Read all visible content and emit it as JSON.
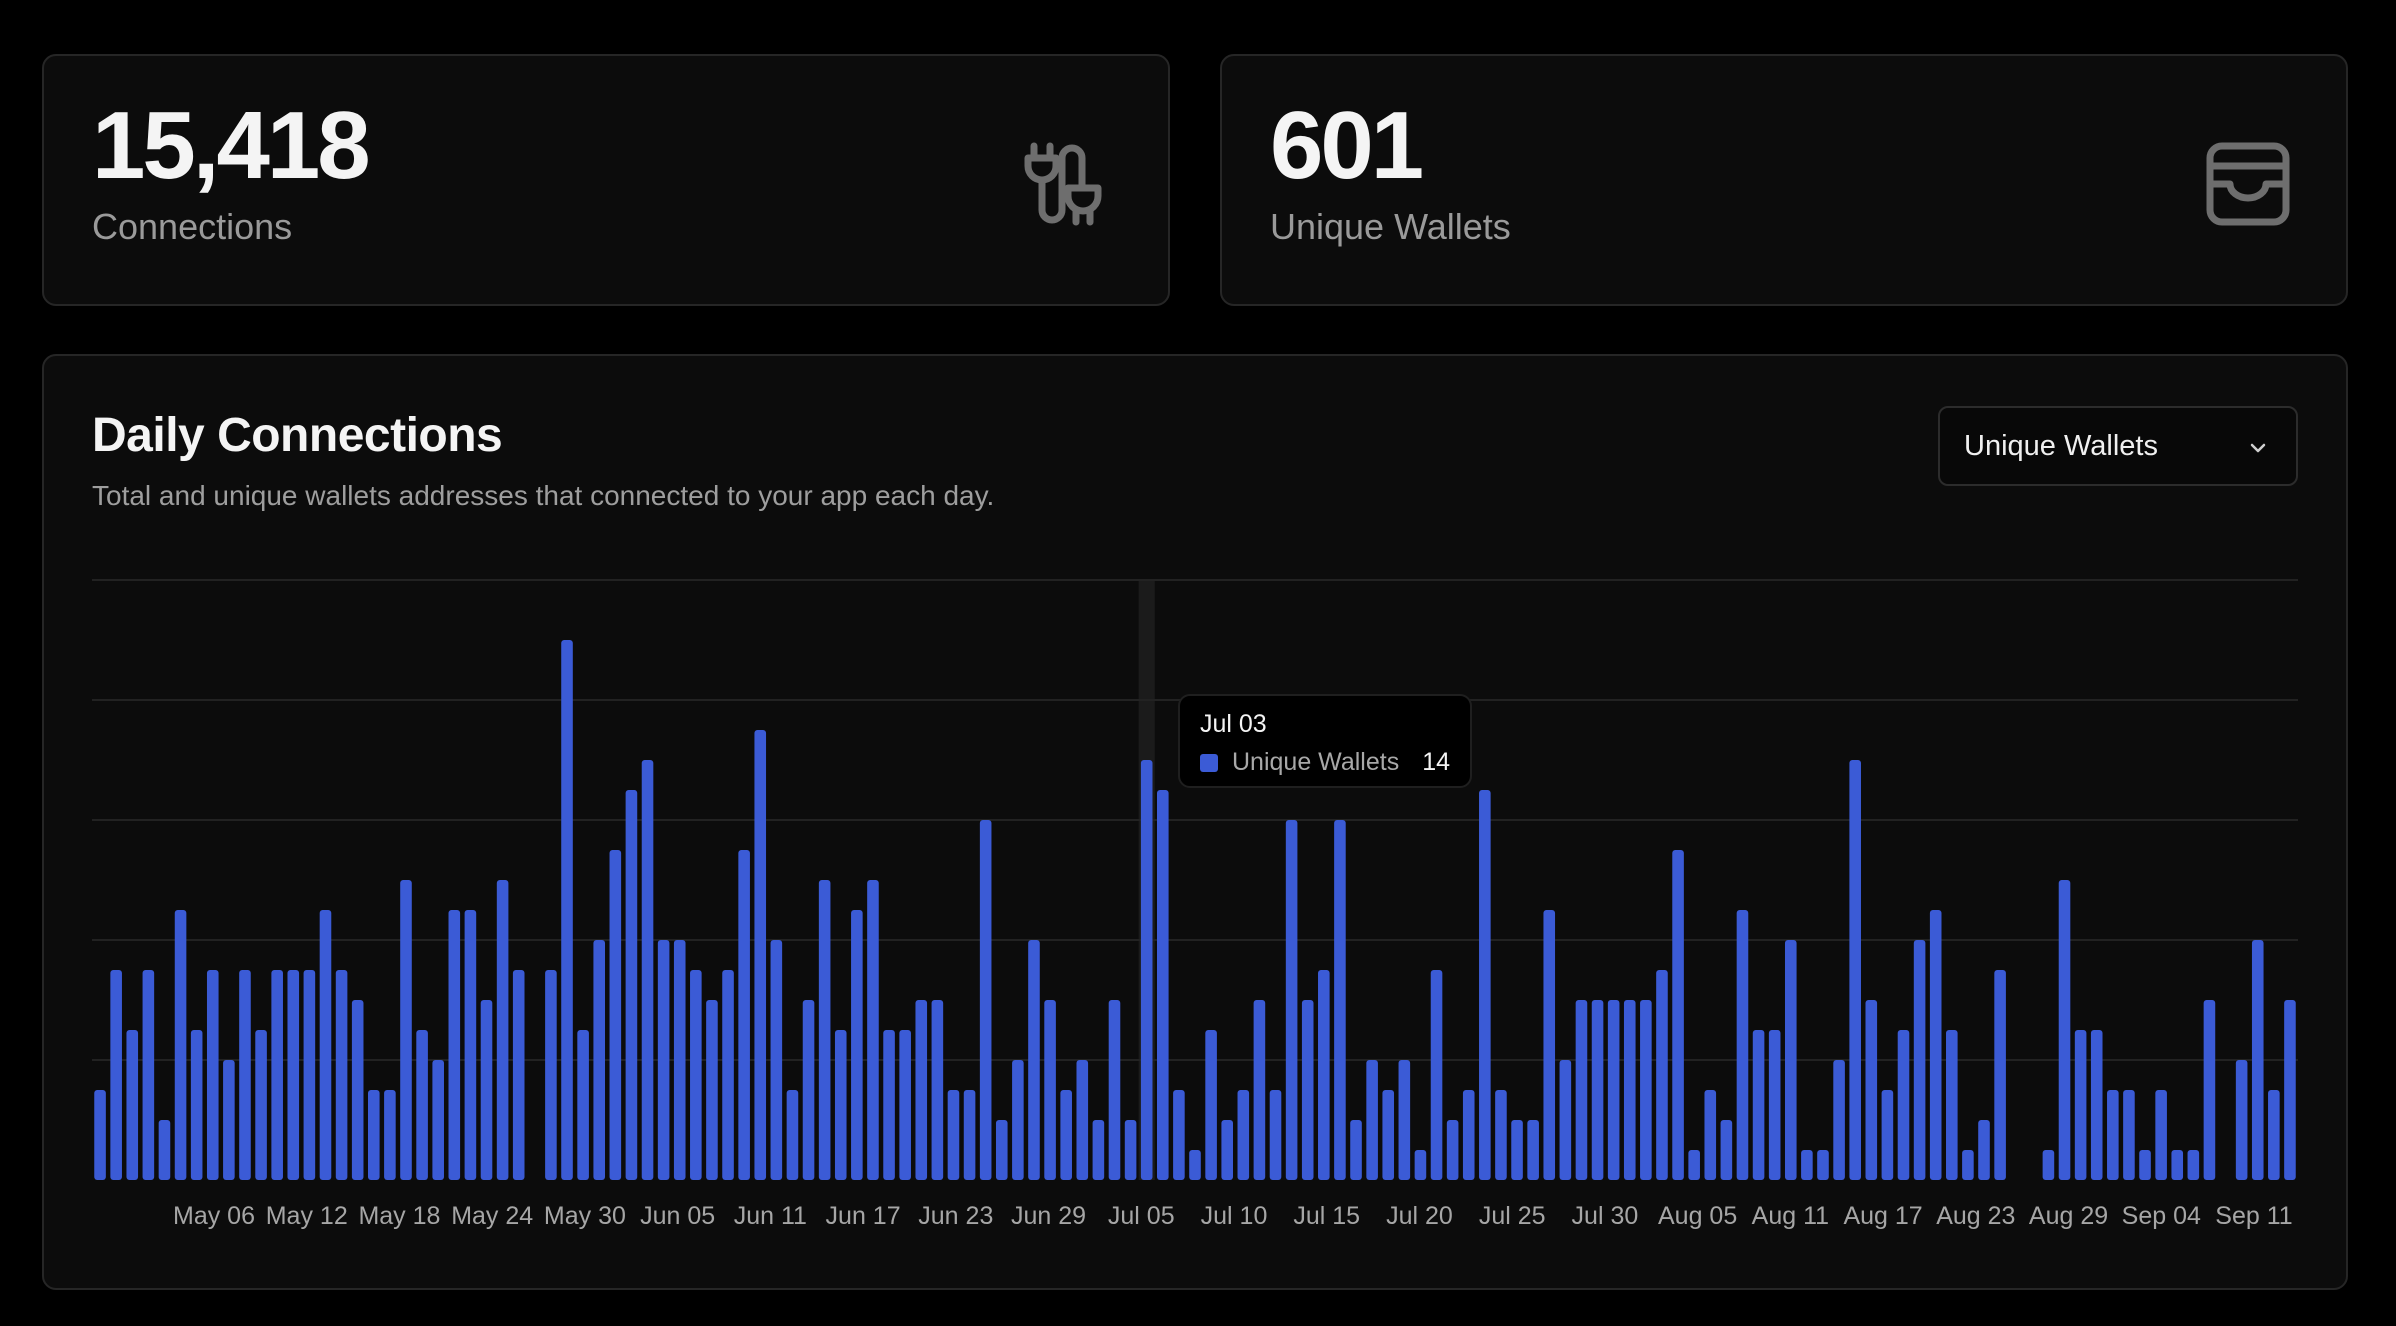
{
  "stats": {
    "connections": {
      "value": "15,418",
      "label": "Connections",
      "icon": "plug-cable-icon"
    },
    "wallets": {
      "value": "601",
      "label": "Unique Wallets",
      "icon": "wallet-icon"
    }
  },
  "chart": {
    "title": "Daily Connections",
    "subtitle": "Total and unique wallets addresses that connected to your app each day.",
    "select": {
      "value": "Unique Wallets",
      "icon": "chevron-down-icon"
    },
    "tooltip": {
      "date": "Jul 03",
      "series": "Unique Wallets",
      "value": "14"
    }
  },
  "colors": {
    "bar": "#3b5bd6",
    "grid": "#222222",
    "hover_band": "#1b1b1b",
    "icon": "#6e6e6e"
  },
  "chart_data": {
    "type": "bar",
    "title": "Daily Connections",
    "ylim": [
      0,
      20
    ],
    "grid": true,
    "x_tick_labels": [
      "May 06",
      "May 12",
      "May 18",
      "May 24",
      "May 30",
      "Jun 05",
      "Jun 11",
      "Jun 17",
      "Jun 23",
      "Jun 29",
      "Jul 05",
      "Jul 10",
      "Jul 15",
      "Jul 20",
      "Jul 25",
      "Jul 30",
      "Aug 05",
      "Aug 11",
      "Aug 17",
      "Aug 23",
      "Aug 29",
      "Sep 04",
      "Sep 11"
    ],
    "series": [
      {
        "name": "Unique Wallets",
        "values": [
          3,
          7,
          5,
          7,
          2,
          9,
          5,
          7,
          4,
          7,
          5,
          7,
          7,
          7,
          9,
          7,
          6,
          3,
          3,
          10,
          5,
          4,
          9,
          9,
          6,
          10,
          7,
          0,
          7,
          18,
          5,
          8,
          11,
          13,
          14,
          8,
          8,
          7,
          6,
          7,
          11,
          15,
          8,
          3,
          6,
          10,
          5,
          9,
          10,
          5,
          5,
          6,
          6,
          3,
          3,
          12,
          2,
          4,
          8,
          6,
          3,
          4,
          2,
          6,
          2,
          14,
          13,
          3,
          1,
          5,
          2,
          3,
          6,
          3,
          12,
          6,
          7,
          12,
          2,
          4,
          3,
          4,
          1,
          7,
          2,
          3,
          13,
          3,
          2,
          2,
          9,
          4,
          6,
          6,
          6,
          6,
          6,
          7,
          11,
          1,
          3,
          2,
          9,
          5,
          5,
          8,
          1,
          1,
          4,
          14,
          6,
          3,
          5,
          8,
          9,
          5,
          1,
          2,
          7,
          0,
          0,
          1,
          10,
          5,
          5,
          3,
          3,
          1,
          3,
          1,
          1,
          6,
          0,
          4,
          8,
          3,
          6
        ]
      }
    ],
    "highlight": {
      "label": "Jul 03",
      "value": 14
    }
  }
}
